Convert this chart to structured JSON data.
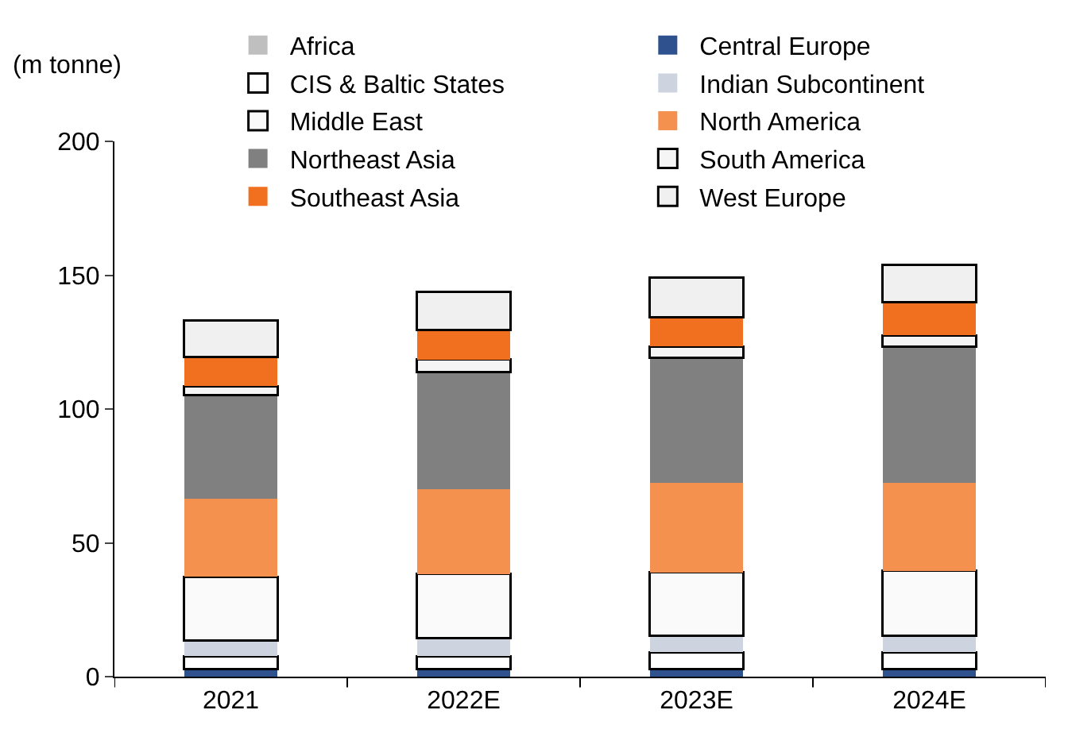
{
  "chart_data": {
    "type": "bar",
    "stacked": true,
    "ylabel": "(m tonne)",
    "categories": [
      "2021",
      "2022E",
      "2023E",
      "2024E"
    ],
    "series": [
      {
        "name": "Africa",
        "color": "#bfbfbf",
        "values": [
          null,
          null,
          null,
          null
        ]
      },
      {
        "name": "Central Europe",
        "color": "#2f528f",
        "values": [
          2.9,
          2.9,
          2.9,
          2.9
        ]
      },
      {
        "name": "CIS & Baltic States",
        "color": "#ffffff",
        "values": [
          4.8,
          4.8,
          6.2,
          6.2
        ]
      },
      {
        "name": "Indian Subcontinent",
        "color": "#cdd3df",
        "values": [
          5.7,
          6.7,
          6.3,
          6.3
        ]
      },
      {
        "name": "Middle East",
        "color": "#fafafa",
        "values": [
          23.9,
          23.9,
          23.5,
          24.2
        ]
      },
      {
        "name": "North America",
        "color": "#f4914f",
        "values": [
          29.2,
          31.7,
          33.4,
          32.7
        ]
      },
      {
        "name": "Northeast Asia",
        "color": "#808080",
        "values": [
          38.6,
          43.7,
          46.8,
          51.0
        ]
      },
      {
        "name": "South America",
        "color": "#f5f5f5",
        "values": [
          3.5,
          4.8,
          4.2,
          4.2
        ]
      },
      {
        "name": "Southeast Asia",
        "color": "#f07020",
        "values": [
          10.8,
          11.1,
          11.0,
          12.4
        ]
      },
      {
        "name": "West Europe",
        "color": "#f0f0f0",
        "values": [
          13.8,
          14.3,
          14.8,
          13.9
        ]
      }
    ],
    "ylim": [
      0,
      200
    ],
    "yticks": [
      0,
      50,
      100,
      150,
      200
    ],
    "grid": false,
    "legend": "top"
  }
}
